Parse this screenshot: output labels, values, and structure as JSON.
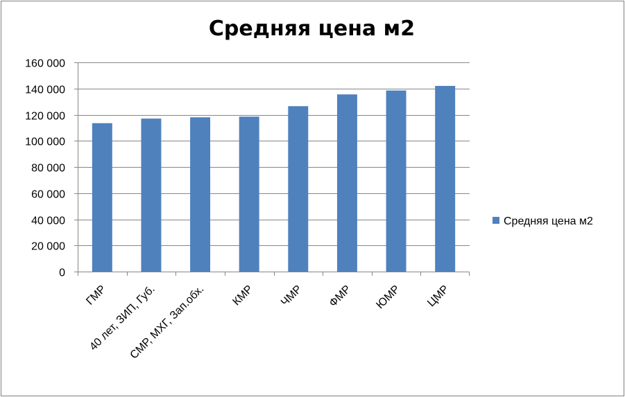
{
  "chart_data": {
    "type": "bar",
    "title": "Средняя цена м2",
    "xlabel": "",
    "ylabel": "",
    "ylim": [
      0,
      160000
    ],
    "ytick_step": 20000,
    "ytick_labels": [
      "0",
      "20 000",
      "40 000",
      "60 000",
      "80 000",
      "100 000",
      "120 000",
      "140 000",
      "160 000"
    ],
    "categories": [
      "ГМР",
      "40 лет, ЗИП, Губ.",
      "СМР, МХГ, Зап.обх.",
      "КМР",
      "ЧМР",
      "ФМР",
      "ЮМР",
      "ЦМР"
    ],
    "series": [
      {
        "name": "Средняя цена м2",
        "color": "#4f81bd",
        "values": [
          113500,
          117000,
          118000,
          118500,
          126500,
          135500,
          138500,
          142000
        ]
      }
    ],
    "grid": true,
    "legend": "right"
  }
}
